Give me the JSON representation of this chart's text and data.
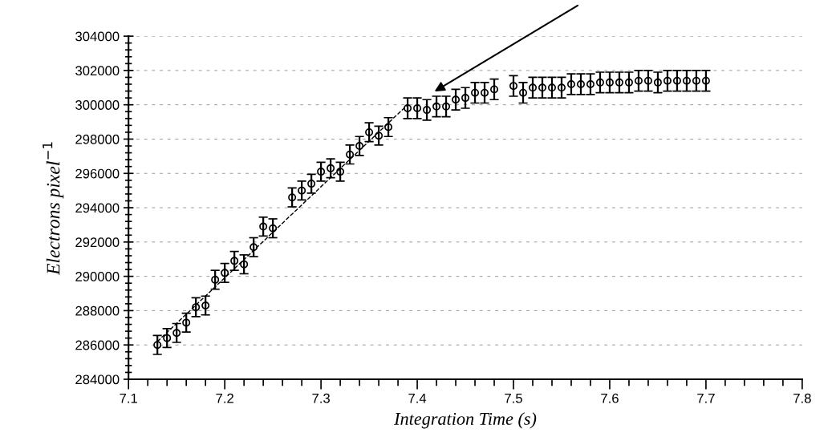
{
  "chart_data": {
    "type": "scatter",
    "xlabel": "Integration Time (s)",
    "ylabel": "Electrons pixel$^{−1}$",
    "xlim": [
      7.1,
      7.8
    ],
    "xticks": [
      7.1,
      7.2,
      7.3,
      7.4,
      7.5,
      7.6,
      7.7,
      7.8
    ],
    "ylim": [
      284000,
      304000
    ],
    "yticks": [
      284000,
      286000,
      288000,
      290000,
      292000,
      294000,
      296000,
      298000,
      300000,
      302000,
      304000
    ],
    "grid": "y",
    "marker": "circle",
    "series": [
      {
        "color": "#000000",
        "x": [
          7.13,
          7.14,
          7.15,
          7.16,
          7.17,
          7.18,
          7.19,
          7.2,
          7.21,
          7.22,
          7.23,
          7.24,
          7.25,
          7.27,
          7.28,
          7.29,
          7.3,
          7.31,
          7.32,
          7.33,
          7.34,
          7.35,
          7.36,
          7.37,
          7.39,
          7.4,
          7.41,
          7.42,
          7.43,
          7.44,
          7.45,
          7.46,
          7.47,
          7.48,
          7.5,
          7.51,
          7.52,
          7.53,
          7.54,
          7.55,
          7.56,
          7.57,
          7.58,
          7.59,
          7.6,
          7.61,
          7.62,
          7.63,
          7.64,
          7.65,
          7.66,
          7.67,
          7.68,
          7.69,
          7.7
        ],
        "values": [
          286000,
          286400,
          286700,
          287300,
          288200,
          288300,
          289800,
          290200,
          290900,
          290700,
          291700,
          292900,
          292800,
          294600,
          295000,
          295400,
          296100,
          296300,
          296100,
          297100,
          297600,
          298400,
          298200,
          298700,
          299800,
          299800,
          299700,
          299900,
          299900,
          300300,
          300400,
          300700,
          300700,
          300900,
          301100,
          300700,
          301000,
          301000,
          301000,
          301000,
          301200,
          301200,
          301200,
          301300,
          301300,
          301300,
          301300,
          301400,
          301400,
          301300,
          301400,
          301400,
          301400,
          301400,
          301400
        ],
        "errors": [
          550,
          550,
          550,
          550,
          550,
          550,
          550,
          550,
          550,
          550,
          550,
          550,
          550,
          550,
          550,
          550,
          550,
          550,
          550,
          550,
          550,
          550,
          550,
          550,
          600,
          600,
          600,
          600,
          600,
          600,
          600,
          600,
          600,
          600,
          600,
          600,
          600,
          600,
          600,
          600,
          600,
          600,
          600,
          600,
          600,
          600,
          600,
          600,
          600,
          600,
          600,
          600,
          600,
          600,
          600
        ]
      },
      {
        "type": "line",
        "color": "#000000",
        "line_style": "dashed",
        "marker": "none",
        "x": [
          7.13,
          7.39
        ],
        "values": [
          286200,
          300000
        ]
      }
    ]
  }
}
